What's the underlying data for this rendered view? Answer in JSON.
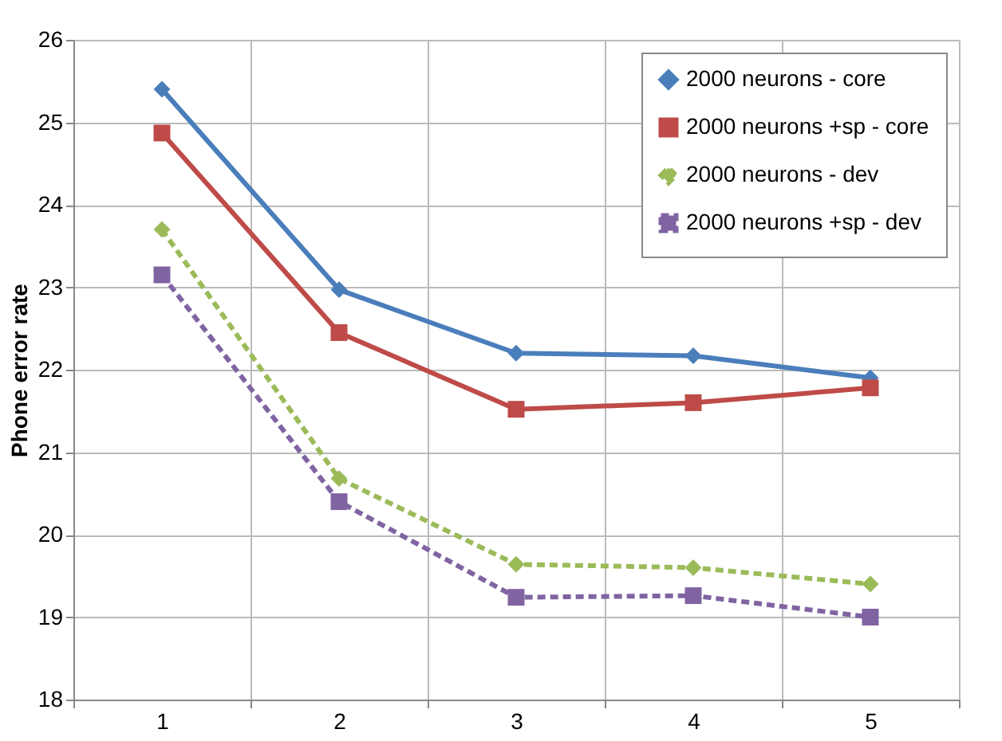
{
  "chart_data": {
    "type": "line",
    "ylabel": "Phone error rate",
    "categories": [
      "1",
      "2",
      "3",
      "4",
      "5"
    ],
    "ylim": [
      18,
      26
    ],
    "yticks": [
      18,
      19,
      20,
      21,
      22,
      23,
      24,
      25,
      26
    ],
    "grid": true,
    "legend": "top right",
    "series": [
      {
        "name": "2000 neurons - core",
        "color": "#4a7ebb",
        "marker": "diamond",
        "line_style": "solid",
        "values": [
          25.4,
          22.97,
          22.2,
          22.17,
          21.9
        ]
      },
      {
        "name": "2000 neurons +sp - core",
        "color": "#be4b48",
        "marker": "square",
        "line_style": "solid",
        "values": [
          24.87,
          22.45,
          21.52,
          21.6,
          21.78
        ]
      },
      {
        "name": "2000 neurons - dev",
        "color": "#9bbb59",
        "marker": "diamond",
        "line_style": "dashed",
        "values": [
          23.7,
          20.68,
          19.64,
          19.6,
          19.4
        ]
      },
      {
        "name": "2000 neurons +sp - dev",
        "color": "#8064a2",
        "marker": "square",
        "line_style": "dashed",
        "values": [
          23.15,
          20.4,
          19.24,
          19.26,
          19.0
        ]
      }
    ]
  }
}
